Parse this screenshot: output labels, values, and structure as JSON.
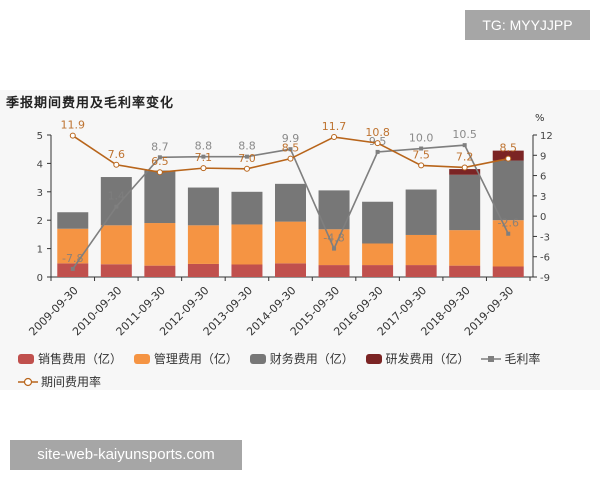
{
  "watermarks": {
    "top": "TG: MYYJJPP",
    "bottom": "site-web-kaiyunsports.com"
  },
  "chart_data": {
    "type": "bar",
    "title": "季报期间费用及毛利率变化",
    "categories": [
      "2009-09-30",
      "2010-09-30",
      "2011-09-30",
      "2012-09-30",
      "2013-09-30",
      "2014-09-30",
      "2015-09-30",
      "2016-09-30",
      "2017-09-30",
      "2018-09-30",
      "2019-09-30"
    ],
    "stacked": true,
    "series": [
      {
        "name": "销售费用（亿）",
        "type": "bar",
        "color": "#c0504d",
        "values": [
          0.48,
          0.45,
          0.4,
          0.46,
          0.44,
          0.48,
          0.42,
          0.42,
          0.42,
          0.4,
          0.37
        ]
      },
      {
        "name": "管理费用（亿）",
        "type": "bar",
        "color": "#f59443",
        "values": [
          1.22,
          1.37,
          1.5,
          1.36,
          1.41,
          1.47,
          1.26,
          0.76,
          1.06,
          1.25,
          1.63
        ]
      },
      {
        "name": "财务费用（亿）",
        "type": "bar",
        "color": "#777777",
        "values": [
          0.58,
          1.7,
          1.85,
          1.33,
          1.15,
          1.33,
          1.37,
          1.47,
          1.6,
          1.95,
          2.1
        ]
      },
      {
        "name": "研发费用（亿）",
        "type": "bar",
        "color": "#7b2424",
        "values": [
          0,
          0,
          0,
          0,
          0,
          0,
          0,
          0,
          0,
          0.2,
          0.35
        ]
      },
      {
        "name": "毛利率",
        "type": "line",
        "axis": "right",
        "color": "#7f7f7f",
        "values": [
          -7.8,
          1.4,
          8.7,
          8.8,
          8.8,
          9.9,
          -4.8,
          9.5,
          10.0,
          10.5,
          -2.6
        ]
      },
      {
        "name": "期间费用率",
        "type": "line",
        "axis": "right",
        "color": "#b8651b",
        "values": [
          11.9,
          7.6,
          6.5,
          7.1,
          7.0,
          8.5,
          11.7,
          10.8,
          7.5,
          7.2,
          8.5
        ]
      }
    ],
    "left_axis": {
      "ticks": [
        "0",
        "1",
        "2",
        "3",
        "4",
        "5"
      ],
      "ylim": [
        0,
        5
      ]
    },
    "right_axis": {
      "label": "%",
      "ticks": [
        "-9",
        "-6",
        "-3",
        "0",
        "3",
        "6",
        "9",
        "12"
      ],
      "ylim": [
        -9,
        12
      ]
    },
    "legend_position": "bottom",
    "grid": false
  },
  "legend": [
    {
      "label": "销售费用（亿）",
      "color": "#c0504d",
      "kind": "swatch"
    },
    {
      "label": "管理费用（亿）",
      "color": "#f59443",
      "kind": "swatch"
    },
    {
      "label": "财务费用（亿）",
      "color": "#777777",
      "kind": "swatch"
    },
    {
      "label": "研发费用（亿）",
      "color": "#7b2424",
      "kind": "swatch"
    },
    {
      "label": "毛利率",
      "color": "#7f7f7f",
      "kind": "line-square"
    },
    {
      "label": "期间费用率",
      "color": "#b8651b",
      "kind": "line-circle"
    }
  ]
}
